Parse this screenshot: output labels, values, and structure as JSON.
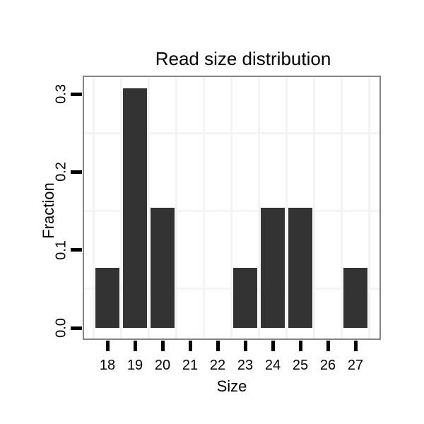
{
  "chart_data": {
    "type": "bar",
    "title": "Read size distribution",
    "xlabel": "Size",
    "ylabel": "Fraction",
    "categories": [
      18,
      19,
      20,
      21,
      22,
      23,
      24,
      25,
      26,
      27
    ],
    "values": [
      0.0769,
      0.3077,
      0.1538,
      0,
      0,
      0.0769,
      0.1538,
      0.1538,
      0,
      0.0769
    ],
    "xtick_labels": [
      "18",
      "19",
      "20",
      "21",
      "22",
      "23",
      "24",
      "25",
      "26",
      "27"
    ],
    "yticks": [
      0,
      0.1,
      0.2,
      0.3
    ],
    "ytick_labels": [
      "0.0",
      "0.1",
      "0.2",
      "0.3"
    ],
    "xlim": [
      17.1,
      27.9
    ],
    "ylim": [
      -0.015,
      0.324
    ],
    "grid": "faint minor gridlines at midpoints between ticks (both axes)",
    "legend_position": "none",
    "colors": {
      "bar_fill": "#333333",
      "panel_border": "#858585",
      "gridline": "#f4f4f4",
      "tick": "#000000",
      "text": "#000000",
      "background": "#ffffff"
    }
  }
}
